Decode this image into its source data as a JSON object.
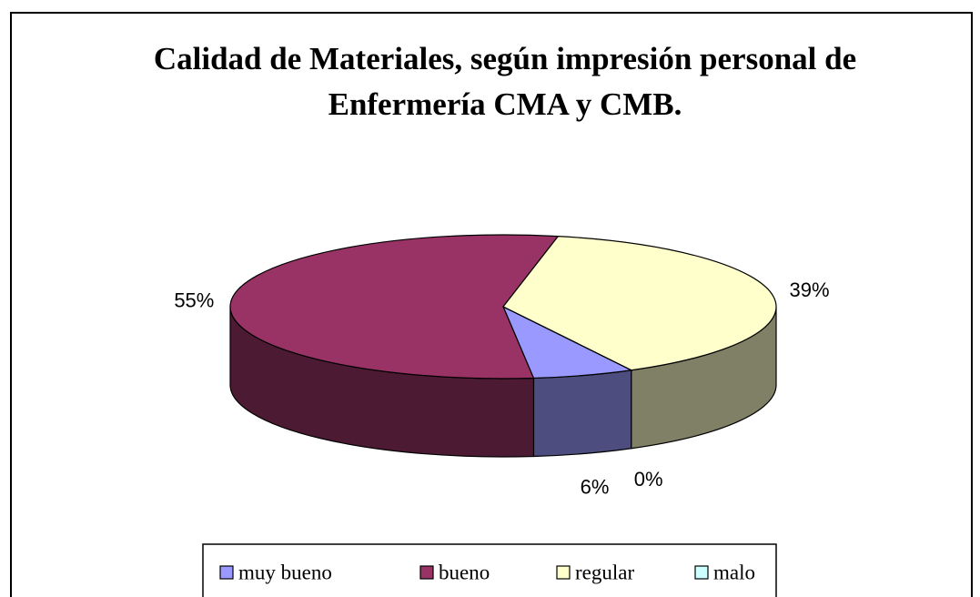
{
  "chart_data": {
    "type": "pie",
    "title": [
      "Calidad de Materiales, según impresión personal de",
      "Enfermería CMA y CMB."
    ],
    "categories": [
      "muy bueno",
      "bueno",
      "regular",
      "malo"
    ],
    "values": [
      6,
      55,
      39,
      0
    ],
    "value_labels": [
      "6%",
      "55%",
      "39%",
      "0%"
    ],
    "colors": [
      "#9999ff",
      "#993366",
      "#ffffcc",
      "#ccffff"
    ],
    "legend": "bottom"
  }
}
